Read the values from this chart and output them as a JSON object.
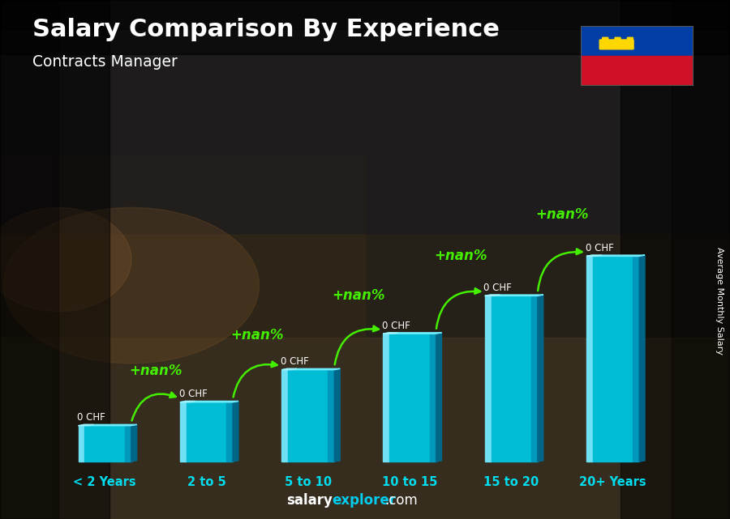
{
  "title": "Salary Comparison By Experience",
  "subtitle": "Contracts Manager",
  "ylabel": "Average Monthly Salary",
  "xlabel_labels": [
    "< 2 Years",
    "2 to 5",
    "5 to 10",
    "10 to 15",
    "15 to 20",
    "20+ Years"
  ],
  "bar_heights": [
    1.0,
    1.65,
    2.55,
    3.55,
    4.6,
    5.7
  ],
  "bar_color_main": "#00bcd4",
  "bar_color_light": "#4dd9ec",
  "bar_color_highlight": "#80eaf5",
  "bar_color_dark": "#0088aa",
  "bar_color_top": "#a0f0ff",
  "salary_labels": [
    "0 CHF",
    "0 CHF",
    "0 CHF",
    "0 CHF",
    "0 CHF",
    "0 CHF"
  ],
  "pct_labels": [
    "+nan%",
    "+nan%",
    "+nan%",
    "+nan%",
    "+nan%"
  ],
  "arrow_color": "#44ee00",
  "label_color_white": "#ffffff",
  "footer_salary_color": "#ffffff",
  "footer_explorer_color": "#00ccee",
  "footer_com_color": "#ffffff",
  "bg_color": "#3a3020",
  "title_color": "#ffffff",
  "flag_blue": "#003DA5",
  "flag_red": "#CE1126",
  "flag_crown_color": "#FFD700"
}
